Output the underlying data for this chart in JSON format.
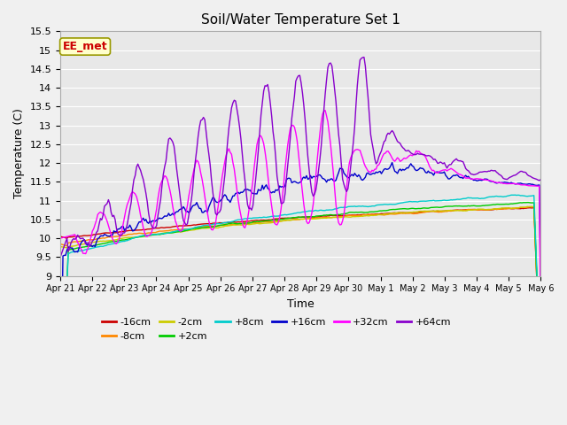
{
  "title": "Soil/Water Temperature Set 1",
  "xlabel": "Time",
  "ylabel": "Temperature (C)",
  "ylim": [
    9.0,
    15.5
  ],
  "yticks": [
    9.0,
    9.5,
    10.0,
    10.5,
    11.0,
    11.5,
    12.0,
    12.5,
    13.0,
    13.5,
    14.0,
    14.5,
    15.0,
    15.5
  ],
  "date_labels": [
    "Apr 21",
    "Apr 22",
    "Apr 23",
    "Apr 24",
    "Apr 25",
    "Apr 26",
    "Apr 27",
    "Apr 28",
    "Apr 29",
    "Apr 30",
    "May 1",
    "May 2",
    "May 3",
    "May 4",
    "May 5",
    "May 6"
  ],
  "n_days": 15,
  "points_per_day": 24,
  "series_colors": {
    "-16cm": "#cc0000",
    "-8cm": "#ff8800",
    "-2cm": "#cccc00",
    "+2cm": "#00cc00",
    "+8cm": "#00cccc",
    "+16cm": "#0000cc",
    "+32cm": "#ff00ff",
    "+64cm": "#8800cc"
  },
  "legend_box_color": "#ffffcc",
  "legend_box_edge": "#999900",
  "annotation_text": "EE_met",
  "annotation_color": "#cc0000",
  "fig_bg_color": "#f0f0f0",
  "plot_bg_color": "#e8e8e8",
  "grid_color": "#ffffff",
  "legend_row1": [
    "-16cm",
    "-8cm",
    "-2cm",
    "+2cm",
    "+8cm",
    "+16cm"
  ],
  "legend_row2": [
    "+32cm",
    "+64cm"
  ]
}
